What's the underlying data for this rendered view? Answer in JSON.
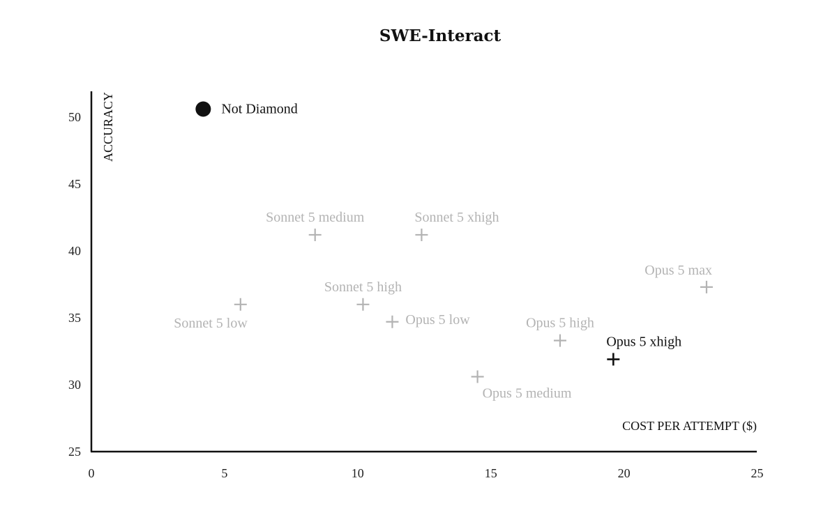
{
  "chart_data": {
    "type": "scatter",
    "title": "SWE-Interact",
    "xlabel": "COST PER ATTEMPT ($)",
    "ylabel": "ACCURACY",
    "xlim": [
      0,
      25
    ],
    "ylim": [
      25,
      52
    ],
    "xticks": [
      "0",
      "5",
      "10",
      "15",
      "20",
      "25"
    ],
    "yticks": [
      "25",
      "30",
      "35",
      "40",
      "45",
      "50"
    ],
    "grid": false,
    "colors": {
      "highlight": "#111111",
      "muted": "#b3b3b3"
    },
    "points": [
      {
        "label": "Not Diamond",
        "x": 4.2,
        "y": 50.6,
        "marker": "circle",
        "style": "highlight",
        "label_pos": "right"
      },
      {
        "label": "Sonnet 5 medium",
        "x": 8.4,
        "y": 41.2,
        "marker": "plus",
        "style": "muted",
        "label_pos": "above"
      },
      {
        "label": "Sonnet 5 xhigh",
        "x": 12.4,
        "y": 41.2,
        "marker": "plus",
        "style": "muted",
        "label_pos": "above-right"
      },
      {
        "label": "Sonnet 5 high",
        "x": 10.2,
        "y": 36.0,
        "marker": "plus",
        "style": "muted",
        "label_pos": "above"
      },
      {
        "label": "Sonnet 5 low",
        "x": 5.6,
        "y": 36.0,
        "marker": "plus",
        "style": "muted",
        "label_pos": "below-left"
      },
      {
        "label": "Opus 5 low",
        "x": 11.3,
        "y": 34.7,
        "marker": "plus",
        "style": "muted",
        "label_pos": "right"
      },
      {
        "label": "Opus 5 medium",
        "x": 14.5,
        "y": 30.6,
        "marker": "plus",
        "style": "muted",
        "label_pos": "below-right"
      },
      {
        "label": "Opus 5 high",
        "x": 17.6,
        "y": 33.3,
        "marker": "plus",
        "style": "muted",
        "label_pos": "above"
      },
      {
        "label": "Opus 5 xhigh",
        "x": 19.6,
        "y": 31.9,
        "marker": "plus",
        "style": "highlight",
        "label_pos": "above-right"
      },
      {
        "label": "Opus 5 max",
        "x": 23.1,
        "y": 37.3,
        "marker": "plus",
        "style": "muted",
        "label_pos": "above-left"
      }
    ]
  }
}
